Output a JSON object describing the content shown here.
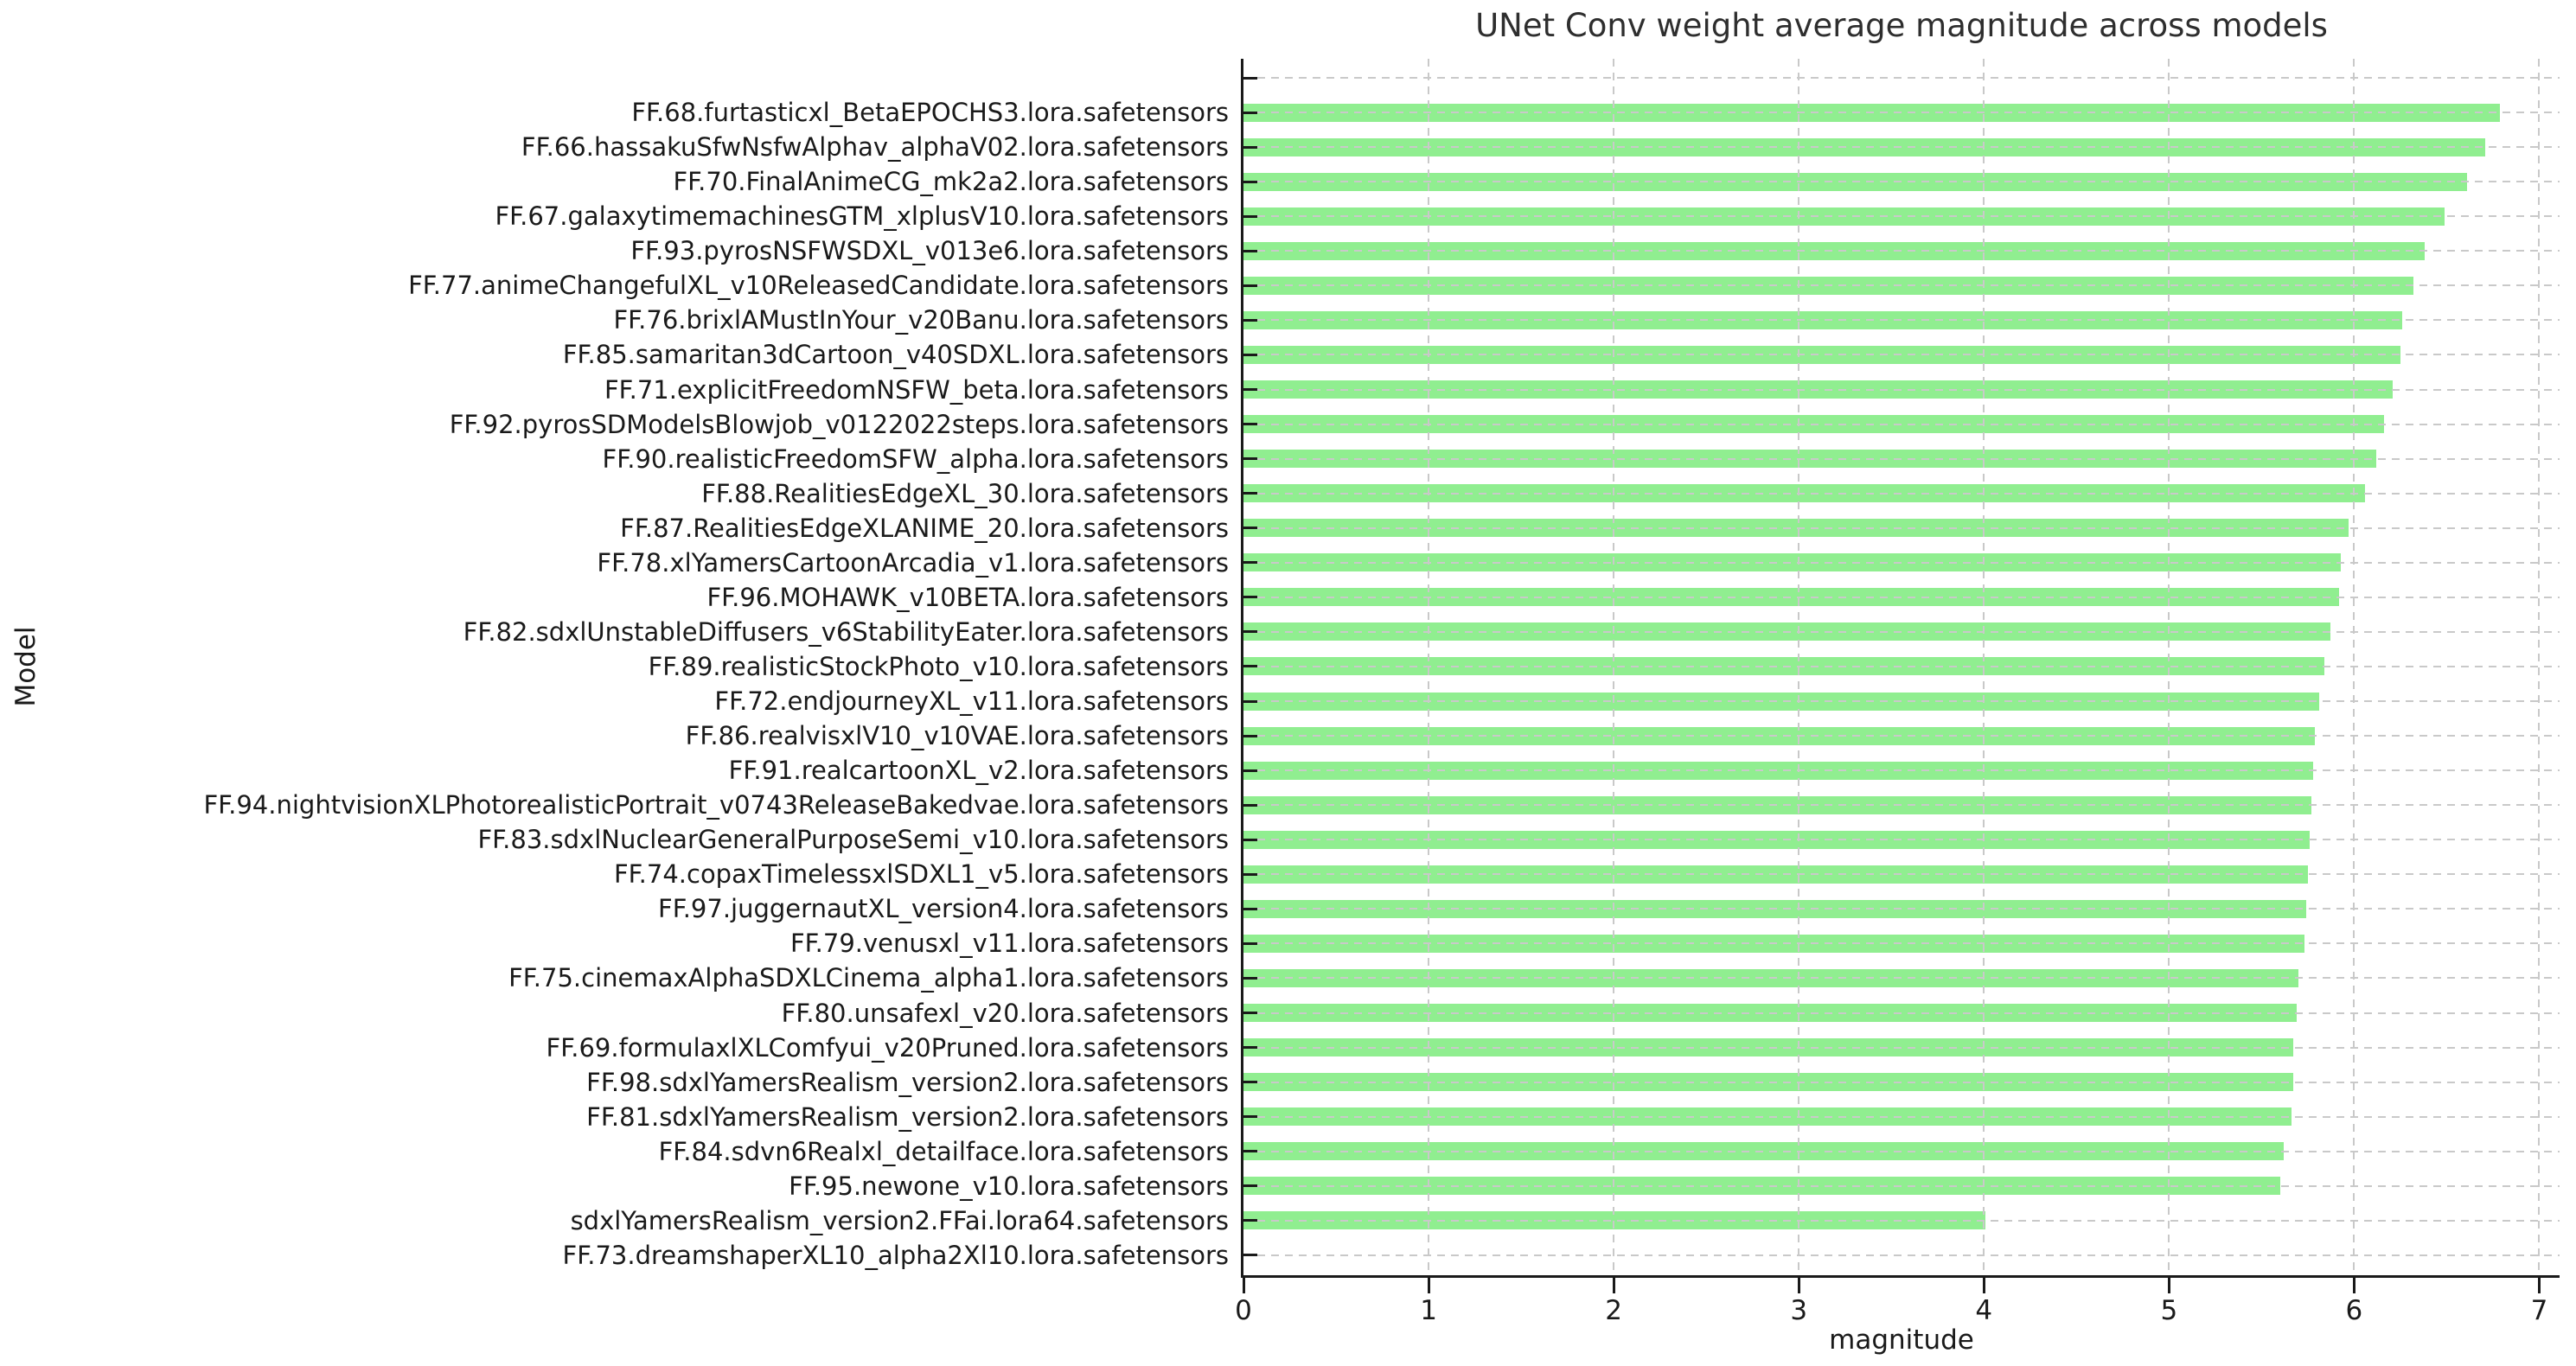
{
  "chart": {
    "title": "UNet Conv weight average magnitude across models",
    "xlabel": "magnitude",
    "ylabel": "Model"
  },
  "chart_data": {
    "type": "bar",
    "orientation": "horizontal",
    "title": "UNet Conv weight average magnitude across models",
    "xlabel": "magnitude",
    "ylabel": "Model",
    "xlim": [
      0,
      7.11
    ],
    "xticks": [
      0,
      1,
      2,
      3,
      4,
      5,
      6,
      7
    ],
    "grid": "dashed-both-axes-over-bars",
    "legend": "none",
    "bar_color": "#90EE90",
    "categories": [
      "",
      "FF.68.furtasticxl_BetaEPOCHS3.lora.safetensors",
      "FF.66.hassakuSfwNsfwAlphav_alphaV02.lora.safetensors",
      "FF.70.FinalAnimeCG_mk2a2.lora.safetensors",
      "FF.67.galaxytimemachinesGTM_xlplusV10.lora.safetensors",
      "FF.93.pyrosNSFWSDXL_v013e6.lora.safetensors",
      "FF.77.animeChangefulXL_v10ReleasedCandidate.lora.safetensors",
      "FF.76.brixlAMustInYour_v20Banu.lora.safetensors",
      "FF.85.samaritan3dCartoon_v40SDXL.lora.safetensors",
      "FF.71.explicitFreedomNSFW_beta.lora.safetensors",
      "FF.92.pyrosSDModelsBlowjob_v0122022steps.lora.safetensors",
      "FF.90.realisticFreedomSFW_alpha.lora.safetensors",
      "FF.88.RealitiesEdgeXL_30.lora.safetensors",
      "FF.87.RealitiesEdgeXLANIME_20.lora.safetensors",
      "FF.78.xlYamersCartoonArcadia_v1.lora.safetensors",
      "FF.96.MOHAWK_v10BETA.lora.safetensors",
      "FF.82.sdxlUnstableDiffusers_v6StabilityEater.lora.safetensors",
      "FF.89.realisticStockPhoto_v10.lora.safetensors",
      "FF.72.endjourneyXL_v11.lora.safetensors",
      "FF.86.realvisxlV10_v10VAE.lora.safetensors",
      "FF.91.realcartoonXL_v2.lora.safetensors",
      "FF.94.nightvisionXLPhotorealisticPortrait_v0743ReleaseBakedvae.lora.safetensors",
      "FF.83.sdxlNuclearGeneralPurposeSemi_v10.lora.safetensors",
      "FF.74.copaxTimelessxlSDXL1_v5.lora.safetensors",
      "FF.97.juggernautXL_version4.lora.safetensors",
      "FF.79.venusxl_v11.lora.safetensors",
      "FF.75.cinemaxAlphaSDXLCinema_alpha1.lora.safetensors",
      "FF.80.unsafexl_v20.lora.safetensors",
      "FF.69.formulaxlXLComfyui_v20Pruned.lora.safetensors",
      "FF.98.sdxlYamersRealism_version2.lora.safetensors",
      "FF.81.sdxlYamersRealism_version2.lora.safetensors",
      "FF.84.sdvn6Realxl_detailface.lora.safetensors",
      "FF.95.newone_v10.lora.safetensors",
      "sdxlYamersRealism_version2.FFai.lora64.safetensors",
      "FF.73.dreamshaperXL10_alpha2Xl10.lora.safetensors"
    ],
    "values": [
      null,
      6.79,
      6.71,
      6.61,
      6.49,
      6.38,
      6.32,
      6.26,
      6.25,
      6.21,
      6.16,
      6.12,
      6.06,
      5.97,
      5.93,
      5.92,
      5.87,
      5.84,
      5.81,
      5.79,
      5.78,
      5.77,
      5.76,
      5.75,
      5.74,
      5.73,
      5.7,
      5.69,
      5.67,
      5.67,
      5.66,
      5.62,
      5.6,
      4.01,
      0.0
    ]
  }
}
